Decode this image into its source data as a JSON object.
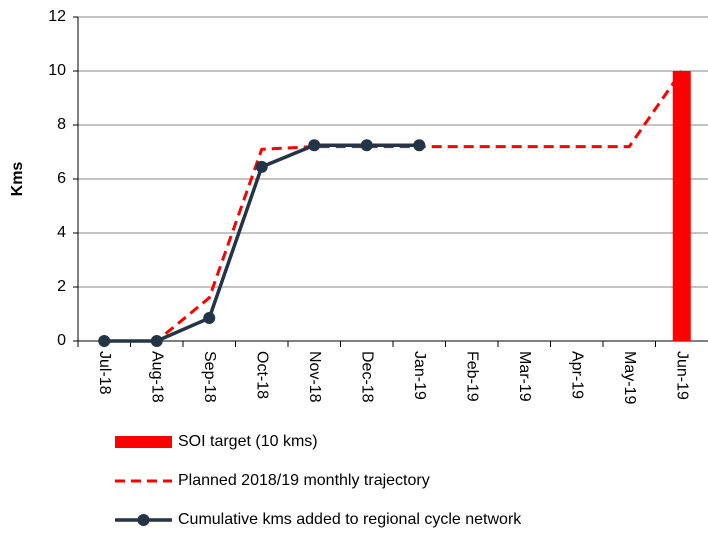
{
  "chart_data": {
    "type": "line",
    "y_label": "Kms",
    "categories": [
      "Jul-18",
      "Aug-18",
      "Sep-18",
      "Oct-18",
      "Nov-18",
      "Dec-18",
      "Jan-19",
      "Feb-19",
      "Mar-19",
      "Apr-19",
      "May-19",
      "Jun-19"
    ],
    "ylim": [
      0,
      12
    ],
    "yticks": [
      0,
      2,
      4,
      6,
      8,
      10,
      12
    ],
    "grid": true,
    "series": [
      {
        "name": "SOI target (10 kms)",
        "type": "bar",
        "color": "#ff0000",
        "values": [
          null,
          null,
          null,
          null,
          null,
          null,
          null,
          null,
          null,
          null,
          null,
          10
        ]
      },
      {
        "name": "Planned 2018/19 monthly trajectory",
        "type": "dashed",
        "color": "#ff0000",
        "values": [
          0,
          0,
          1.6,
          7.1,
          7.2,
          7.2,
          7.2,
          7.2,
          7.2,
          7.2,
          7.2,
          10
        ]
      },
      {
        "name": "Cumulative kms added to regional cycle network",
        "type": "marker-line",
        "color": "#243447",
        "values": [
          0,
          0,
          0.85,
          6.45,
          7.25,
          7.25,
          7.25,
          null,
          null,
          null,
          null,
          null
        ]
      }
    ]
  }
}
